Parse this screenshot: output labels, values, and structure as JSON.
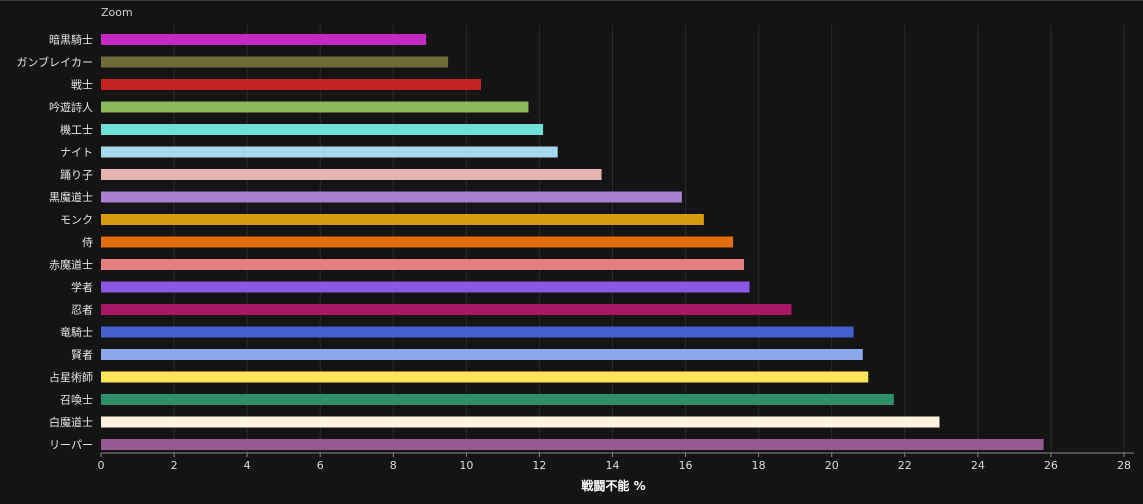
{
  "toolbar": {
    "zoom_label": "Zoom"
  },
  "chart_data": {
    "type": "bar",
    "orientation": "horizontal",
    "title": "",
    "xlabel": "戦闘不能 %",
    "ylabel": "",
    "xlim": [
      0,
      28
    ],
    "xticks": [
      0,
      2,
      4,
      6,
      8,
      10,
      12,
      14,
      16,
      18,
      20,
      22,
      24,
      26,
      28
    ],
    "grid": true,
    "categories": [
      "暗黒騎士",
      "ガンブレイカー",
      "戦士",
      "吟遊詩人",
      "機工士",
      "ナイト",
      "踊り子",
      "黒魔道士",
      "モンク",
      "侍",
      "赤魔道士",
      "学者",
      "忍者",
      "竜騎士",
      "賢者",
      "占星術師",
      "召喚士",
      "白魔道士",
      "リーパー"
    ],
    "values": [
      8.9,
      9.5,
      10.4,
      11.7,
      12.1,
      12.5,
      13.7,
      15.9,
      16.5,
      17.3,
      17.6,
      17.75,
      18.9,
      20.6,
      20.85,
      21.0,
      21.7,
      22.95,
      25.8
    ],
    "colors": [
      "#c429c4",
      "#6e6b37",
      "#c42121",
      "#8db85b",
      "#6ee0d6",
      "#a7d8eb",
      "#e6b3b3",
      "#a782d1",
      "#d69c0d",
      "#e36d0d",
      "#e67f7f",
      "#8b57e6",
      "#a81766",
      "#4360cc",
      "#8aa9eb",
      "#ffe359",
      "#2e8f66",
      "#fff4e0",
      "#965a90"
    ]
  }
}
